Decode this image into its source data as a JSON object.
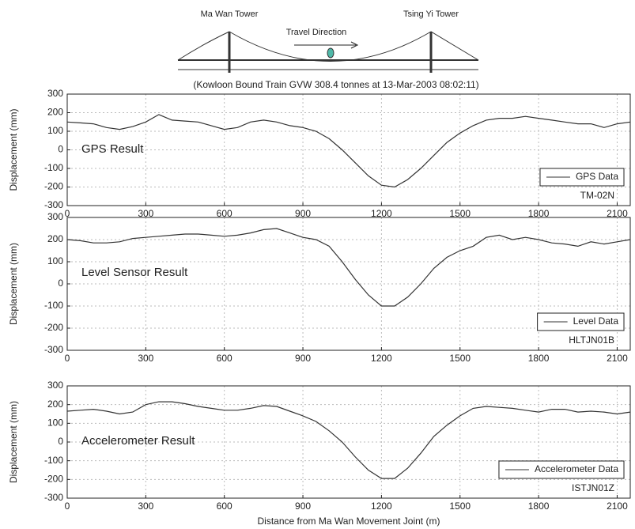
{
  "header": {
    "left_tower": "Ma Wan Tower",
    "right_tower": "Tsing Yi Tower",
    "direction": "Travel Direction",
    "subtitle": "(Kowloon Bound Train GVW 308.4 tonnes at 13-Mar-2003 08:02:11)"
  },
  "chart_data": [
    {
      "type": "line",
      "ylabel": "Displacement (mm)",
      "annotation": "GPS Result",
      "sensor": "TM-02N",
      "x": [
        0,
        50,
        100,
        150,
        200,
        250,
        300,
        350,
        400,
        450,
        500,
        550,
        600,
        650,
        700,
        750,
        800,
        850,
        900,
        950,
        1000,
        1050,
        1100,
        1150,
        1200,
        1250,
        1300,
        1350,
        1400,
        1450,
        1500,
        1550,
        1600,
        1650,
        1700,
        1750,
        1800,
        1850,
        1900,
        1950,
        2000,
        2050,
        2100,
        2150
      ],
      "series": [
        {
          "name": "GPS Data",
          "color": "#333333",
          "values": [
            150,
            145,
            140,
            120,
            110,
            125,
            150,
            190,
            160,
            155,
            150,
            130,
            110,
            120,
            150,
            160,
            150,
            130,
            120,
            100,
            60,
            0,
            -70,
            -140,
            -190,
            -200,
            -160,
            -100,
            -30,
            40,
            90,
            130,
            160,
            170,
            170,
            180,
            170,
            160,
            150,
            140,
            140,
            120,
            140,
            150
          ]
        }
      ],
      "xlim": [
        0,
        2150
      ],
      "ylim": [
        -300,
        300
      ],
      "xticks": [
        0,
        300,
        600,
        900,
        1200,
        1500,
        1800,
        2100
      ],
      "yticks": [
        -300,
        -200,
        -100,
        0,
        100,
        200,
        300
      ],
      "grid": true,
      "legend": "lower right"
    },
    {
      "type": "line",
      "ylabel": "Displacement (mm)",
      "annotation": "Level Sensor Result",
      "sensor": "HLTJN01B",
      "x": [
        0,
        50,
        100,
        150,
        200,
        250,
        300,
        350,
        400,
        450,
        500,
        550,
        600,
        650,
        700,
        750,
        800,
        850,
        900,
        950,
        1000,
        1050,
        1100,
        1150,
        1200,
        1250,
        1300,
        1350,
        1400,
        1450,
        1500,
        1550,
        1600,
        1650,
        1700,
        1750,
        1800,
        1850,
        1900,
        1950,
        2000,
        2050,
        2100,
        2150
      ],
      "series": [
        {
          "name": "Level Data",
          "color": "#333333",
          "values": [
            200,
            195,
            185,
            185,
            190,
            205,
            210,
            215,
            220,
            225,
            225,
            220,
            215,
            220,
            230,
            245,
            250,
            230,
            210,
            200,
            170,
            100,
            20,
            -50,
            -100,
            -100,
            -60,
            0,
            70,
            120,
            150,
            170,
            210,
            220,
            200,
            210,
            200,
            185,
            180,
            170,
            190,
            180,
            190,
            200
          ]
        }
      ],
      "xlim": [
        0,
        2150
      ],
      "ylim": [
        -300,
        300
      ],
      "xticks": [
        0,
        300,
        600,
        900,
        1200,
        1500,
        1800,
        2100
      ],
      "yticks": [
        -300,
        -200,
        -100,
        0,
        100,
        200,
        300
      ],
      "grid": true,
      "legend": "lower right"
    },
    {
      "type": "line",
      "ylabel": "Displacement (mm)",
      "xlabel": "Distance from Ma Wan Movement Joint (m)",
      "annotation": "Accelerometer  Result",
      "sensor": "ISTJN01Z",
      "x": [
        0,
        50,
        100,
        150,
        200,
        250,
        300,
        350,
        400,
        450,
        500,
        550,
        600,
        650,
        700,
        750,
        800,
        850,
        900,
        950,
        1000,
        1050,
        1100,
        1150,
        1200,
        1250,
        1300,
        1350,
        1400,
        1450,
        1500,
        1550,
        1600,
        1650,
        1700,
        1750,
        1800,
        1850,
        1900,
        1950,
        2000,
        2050,
        2100,
        2150
      ],
      "series": [
        {
          "name": "Accelerometer Data",
          "color": "#333333",
          "values": [
            165,
            170,
            175,
            165,
            150,
            160,
            200,
            215,
            215,
            205,
            190,
            180,
            170,
            170,
            180,
            195,
            190,
            165,
            140,
            110,
            60,
            0,
            -80,
            -150,
            -195,
            -195,
            -140,
            -60,
            30,
            90,
            140,
            180,
            190,
            185,
            180,
            170,
            160,
            175,
            175,
            160,
            165,
            160,
            150,
            160
          ]
        }
      ],
      "xlim": [
        0,
        2150
      ],
      "ylim": [
        -300,
        300
      ],
      "xticks": [
        0,
        300,
        600,
        900,
        1200,
        1500,
        1800,
        2100
      ],
      "yticks": [
        -300,
        -200,
        -100,
        0,
        100,
        200,
        300
      ],
      "grid": true,
      "legend": "lower right"
    }
  ]
}
